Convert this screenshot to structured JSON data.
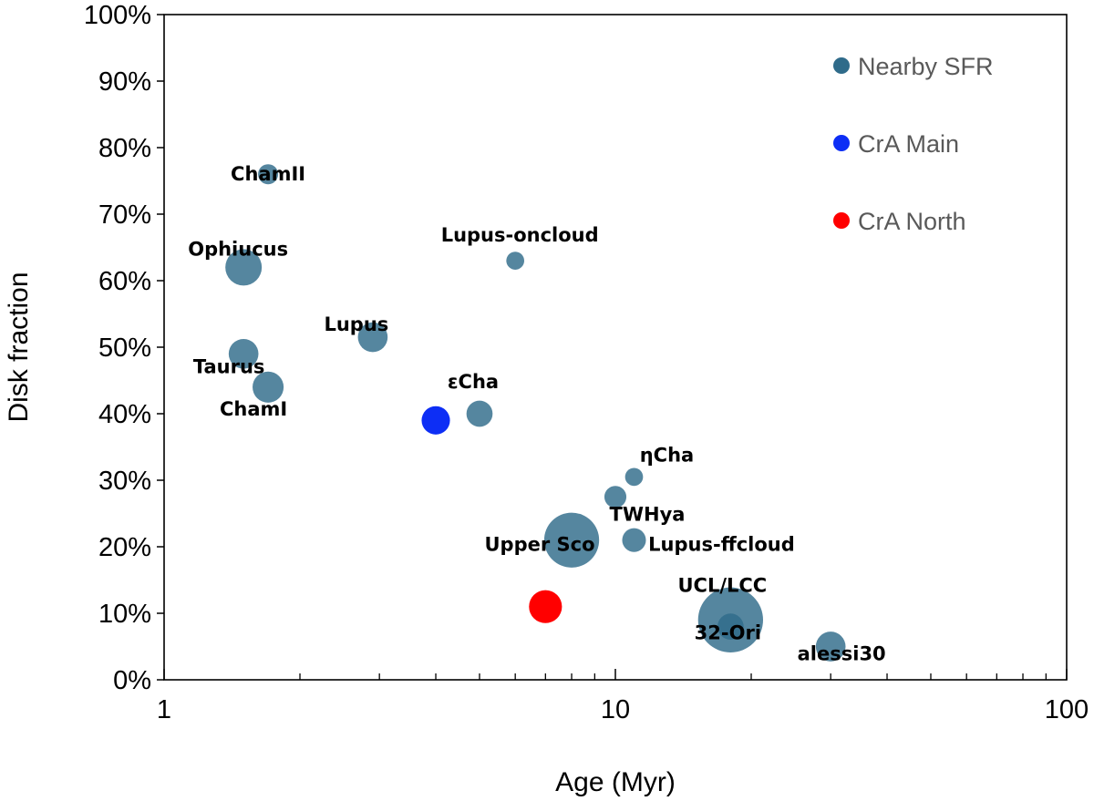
{
  "chart_data": {
    "type": "scatter",
    "subtype": "bubble",
    "title": "",
    "xlabel": "Age (Myr)",
    "ylabel": "Disk fraction",
    "xscale": "log",
    "xlim": [
      1,
      100
    ],
    "ylim": [
      0,
      100
    ],
    "x_ticks": [
      "1",
      "10",
      "100"
    ],
    "y_ticks": [
      "0%",
      "10%",
      "20%",
      "30%",
      "40%",
      "50%",
      "60%",
      "70%",
      "80%",
      "90%",
      "100%"
    ],
    "grid": false,
    "legend_position": "top-right",
    "colors": {
      "nearby": "#2f6b8a",
      "crA_main": "#0d2ef5",
      "crA_north": "#ff0000"
    },
    "legend": [
      {
        "name": "Nearby SFR",
        "color_key": "nearby"
      },
      {
        "name": "CrA Main",
        "color_key": "crA_main"
      },
      {
        "name": "CrA North",
        "color_key": "crA_north"
      }
    ],
    "series": [
      {
        "name": "Nearby SFR",
        "color_key": "nearby",
        "points": [
          {
            "label": "ChamII",
            "age": 1.7,
            "disk_fraction": 76,
            "size": 1
          },
          {
            "label": "Ophiucus",
            "age": 1.5,
            "disk_fraction": 62,
            "size": 3.3
          },
          {
            "label": "Taurus",
            "age": 1.5,
            "disk_fraction": 49,
            "size": 2.2
          },
          {
            "label": "ChamI",
            "age": 1.7,
            "disk_fraction": 44,
            "size": 2.4
          },
          {
            "label": "Lupus",
            "age": 2.9,
            "disk_fraction": 51.5,
            "size": 2.2
          },
          {
            "label": "εCha",
            "age": 5,
            "disk_fraction": 40,
            "size": 1.7
          },
          {
            "label": "Lupus-oncloud",
            "age": 6,
            "disk_fraction": 63,
            "size": 0.8
          },
          {
            "label": "ηCha",
            "age": 11,
            "disk_fraction": 30.5,
            "size": 0.8
          },
          {
            "label": "TWHya",
            "age": 10,
            "disk_fraction": 27.5,
            "size": 1.2
          },
          {
            "label": "Upper Sco",
            "age": 8,
            "disk_fraction": 21,
            "size": 7.5
          },
          {
            "label": "Lupus-ffcloud",
            "age": 11,
            "disk_fraction": 21,
            "size": 1.4
          },
          {
            "label": "UCL/LCC",
            "age": 18,
            "disk_fraction": 9,
            "size": 10.5
          },
          {
            "label": "32-Ori",
            "age": 18,
            "disk_fraction": 8,
            "size": 1.7
          },
          {
            "label": "alessi30",
            "age": 30,
            "disk_fraction": 5,
            "size": 2.2
          }
        ]
      },
      {
        "name": "CrA Main",
        "color_key": "crA_main",
        "points": [
          {
            "label": "",
            "age": 4,
            "disk_fraction": 39,
            "size": 2
          }
        ]
      },
      {
        "name": "CrA North",
        "color_key": "crA_north",
        "points": [
          {
            "label": "",
            "age": 7,
            "disk_fraction": 11,
            "size": 2.7
          }
        ]
      }
    ]
  }
}
